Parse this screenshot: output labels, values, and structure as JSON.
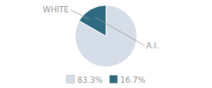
{
  "chart_data": {
    "type": "pie",
    "categories": [
      "WHITE",
      "A.I."
    ],
    "values": [
      83.3,
      16.7
    ],
    "value_labels": [
      "83.3%",
      "16.7%"
    ],
    "colors": [
      "#d5dde8",
      "#2e6b82"
    ],
    "legend": "bottom"
  }
}
